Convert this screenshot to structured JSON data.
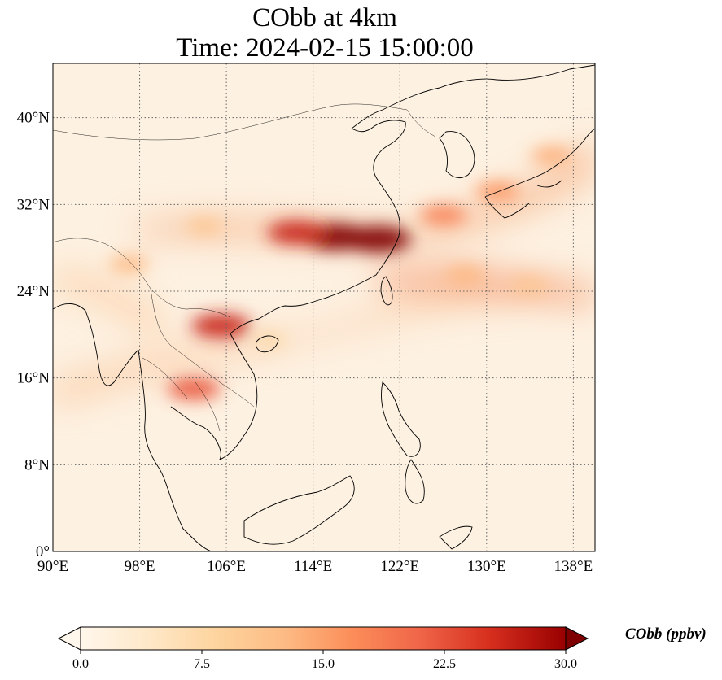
{
  "title": {
    "line1": "CObb at 4km",
    "line2": "Time: 2024-02-15 15:00:00"
  },
  "map": {
    "lon_range": [
      90,
      140
    ],
    "lat_range": [
      0,
      45
    ],
    "x_ticks": [
      "90°E",
      "98°E",
      "106°E",
      "114°E",
      "122°E",
      "130°E",
      "138°E"
    ],
    "x_tick_values": [
      90,
      98,
      106,
      114,
      122,
      130,
      138
    ],
    "y_ticks": [
      "0°",
      "8°N",
      "16°N",
      "24°N",
      "32°N",
      "40°N"
    ],
    "y_tick_values": [
      0,
      8,
      16,
      24,
      32,
      40
    ],
    "gridlines": "dotted",
    "colormap": "OrRd",
    "background_color": "#fdf1e1",
    "plumes": [
      {
        "lon": 116.0,
        "lat": 29.0,
        "level": 30
      },
      {
        "lon": 120.0,
        "lat": 28.8,
        "level": 30
      },
      {
        "lon": 112.5,
        "lat": 29.4,
        "level": 26
      },
      {
        "lon": 104.0,
        "lat": 30.0,
        "level": 11
      },
      {
        "lon": 126.0,
        "lat": 31.0,
        "level": 18
      },
      {
        "lon": 131.0,
        "lat": 33.2,
        "level": 16
      },
      {
        "lon": 136.0,
        "lat": 36.5,
        "level": 14
      },
      {
        "lon": 128.0,
        "lat": 25.5,
        "level": 13
      },
      {
        "lon": 134.0,
        "lat": 24.5,
        "level": 11
      },
      {
        "lon": 105.5,
        "lat": 20.8,
        "level": 26
      },
      {
        "lon": 103.0,
        "lat": 15.0,
        "level": 22
      },
      {
        "lon": 97.0,
        "lat": 26.5,
        "level": 13
      },
      {
        "lon": 110.0,
        "lat": 19.5,
        "level": 8
      }
    ]
  },
  "colorbar": {
    "ticks": [
      "0.0",
      "7.5",
      "15.0",
      "22.5",
      "30.0"
    ],
    "tick_values": [
      0,
      7.5,
      15,
      22.5,
      30
    ],
    "label": "CObb (ppbv)",
    "extend": "both"
  }
}
